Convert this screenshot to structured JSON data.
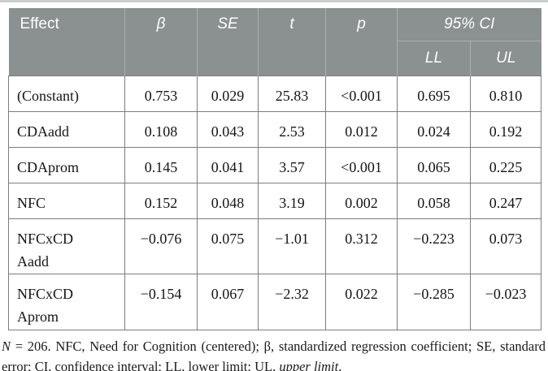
{
  "table": {
    "header": {
      "effect_label": "Effect",
      "col_beta": "β",
      "col_se": "SE",
      "col_t": "t",
      "col_p": "p",
      "col_ci": "95% CI",
      "col_ll": "LL",
      "col_ul": "UL"
    },
    "rows": [
      {
        "effect": "(Constant)",
        "beta": "0.753",
        "se": "0.029",
        "t": "25.83",
        "p": "<0.001",
        "ll": "0.695",
        "ul": "0.810"
      },
      {
        "effect": "CDAadd",
        "beta": "0.108",
        "se": "0.043",
        "t": "2.53",
        "p": "0.012",
        "ll": "0.024",
        "ul": "0.192"
      },
      {
        "effect": "CDAprom",
        "beta": "0.145",
        "se": "0.041",
        "t": "3.57",
        "p": "<0.001",
        "ll": "0.065",
        "ul": "0.225"
      },
      {
        "effect": "NFC",
        "beta": "0.152",
        "se": "0.048",
        "t": "3.19",
        "p": "0.002",
        "ll": "0.058",
        "ul": "0.247"
      },
      {
        "effect": "NFCxCD\nAadd",
        "beta": "−0.076",
        "se": "0.075",
        "t": "−1.01",
        "p": "0.312",
        "ll": "−0.223",
        "ul": "0.073"
      },
      {
        "effect": "NFCxCD\nAprom",
        "beta": "−0.154",
        "se": "0.067",
        "t": "−2.32",
        "p": "0.022",
        "ll": "−0.285",
        "ul": "−0.023"
      }
    ]
  },
  "footnote": {
    "segments": [
      {
        "text": "N",
        "italic": true
      },
      {
        "text": " = 206. NFC, Need for Cognition (centered); β, standardized regression coefficient; SE, standard error; CI, confidence interval; LL, lower limit; UL, ",
        "italic": false
      },
      {
        "text": "upper limit",
        "italic": true
      },
      {
        "text": ".",
        "italic": false
      }
    ]
  },
  "colors": {
    "header_bg": "#8b9191",
    "header_divider": "#aab0af",
    "body_border": "#7d7d7d",
    "top_rule": "#cacecd",
    "header_text": "#fdfdfd"
  }
}
